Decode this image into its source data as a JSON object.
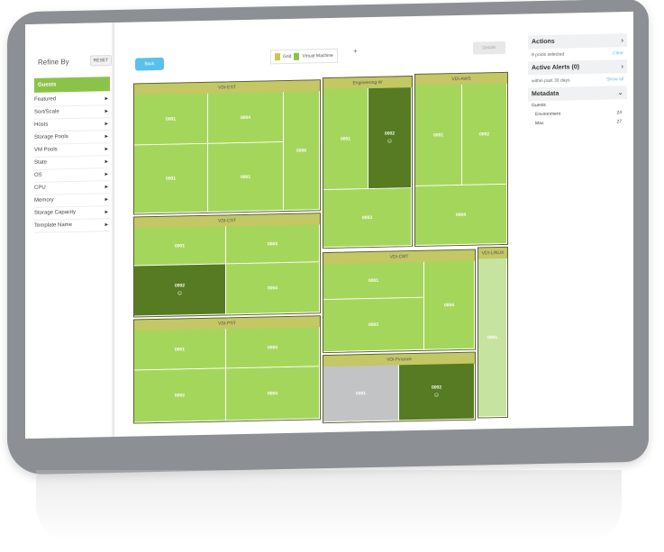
{
  "left_panel": {
    "refine_label": "Refine By",
    "reset_label": "RESET",
    "group_label": "Guests",
    "filters": [
      "Featured",
      "Sort/Scale",
      "Hosts",
      "Storage Pools",
      "VM Pools",
      "State",
      "OS",
      "CPU",
      "Memory",
      "Storage Capacity",
      "Template Name"
    ]
  },
  "toolbar": {
    "back_label": "Back",
    "legend_items": [
      "Grid",
      "Virtual Machine"
    ],
    "add_label": "+",
    "details_label": "Details"
  },
  "treemap": {
    "groups": [
      {
        "label": "VDI-EST",
        "cells": [
          "0001",
          "0004",
          "0006",
          "0001",
          "0001"
        ]
      },
      {
        "label": "Engineering-W",
        "cells": [
          "0001",
          "0002",
          "0003"
        ]
      },
      {
        "label": "VDI-AWS",
        "cells": [
          "0001",
          "0002",
          "0004"
        ]
      },
      {
        "label": "VDI-CST",
        "cells": [
          "0001",
          "0003",
          "0002",
          "0004"
        ]
      },
      {
        "label": "VDI-CMT",
        "cells": [
          "0001",
          "0004",
          "0003"
        ]
      },
      {
        "label": "VDI-LINUX",
        "cells": [
          "0001"
        ]
      },
      {
        "label": "VDI-PST",
        "cells": [
          "0001",
          "0003",
          "0002",
          "0004"
        ]
      },
      {
        "label": "VDI-Finance",
        "cells": [
          "0001",
          "0002"
        ]
      }
    ]
  },
  "right_panel": {
    "actions_title": "Actions",
    "actions_arrow": "›",
    "selected_text": "8 pools selected",
    "clear_label": "Clear",
    "alerts_title": "Active Alerts (0)",
    "alerts_arrow": "›",
    "alerts_window": "within past 30 days",
    "show_all_label": "Show all",
    "metadata_title": "Metadata",
    "metadata_arrow": "⌄",
    "guests_label": "Guests",
    "items": [
      {
        "label": "Environment",
        "count": "24"
      },
      {
        "label": "Max",
        "count": "27"
      }
    ]
  },
  "colors": {
    "accent_green": "#8bc34a",
    "cell_green": "#a5d65c",
    "dark_green": "#567b23",
    "header_olive": "#c3c764",
    "back_blue": "#5bc0eb"
  }
}
